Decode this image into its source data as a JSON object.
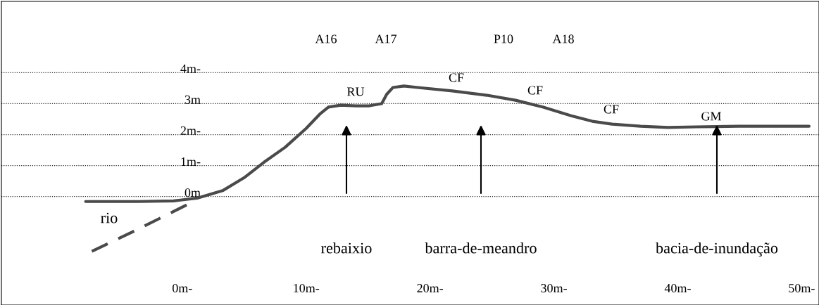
{
  "chart_data": {
    "type": "line",
    "series": [
      {
        "color": "#4a4a4a",
        "line_style": "solid",
        "x": [
          -7.8,
          -3.5,
          -0.7,
          1.2,
          3.3,
          5.0,
          6.6,
          8.3,
          10.0,
          11.1,
          11.8,
          12.8,
          14.0,
          15.1,
          16.1,
          16.5,
          17.0,
          17.9,
          19.0,
          21.8,
          24.6,
          26.9,
          29.1,
          31.4,
          33.1,
          34.7,
          37.0,
          39.2,
          41.5,
          44.9,
          47.7,
          50.6
        ],
        "values": [
          -0.16,
          -0.16,
          -0.14,
          -0.05,
          0.2,
          0.61,
          1.11,
          1.59,
          2.2,
          2.66,
          2.89,
          2.95,
          2.93,
          2.93,
          3.0,
          3.3,
          3.52,
          3.57,
          3.52,
          3.41,
          3.27,
          3.11,
          2.89,
          2.61,
          2.43,
          2.34,
          2.27,
          2.23,
          2.25,
          2.27,
          2.27,
          2.27
        ]
      },
      {
        "color": "#4a4a4a",
        "line_style": "dashed",
        "x": [
          -7.3,
          -3.3,
          -0.7,
          1.0
        ],
        "values": [
          -1.77,
          -1.0,
          -0.48,
          -0.14
        ]
      }
    ],
    "xlim": [
      -14.6,
      51.4
    ],
    "ylim": [
      -3.5,
      6.3
    ],
    "xticks": [
      {
        "value": 0,
        "label": "0m-"
      },
      {
        "value": 10,
        "label": "10m-"
      },
      {
        "value": 20,
        "label": "20m-"
      },
      {
        "value": 30,
        "label": "30m-"
      },
      {
        "value": 40,
        "label": "40m-"
      },
      {
        "value": 50,
        "label": "50m-"
      }
    ],
    "yticks": [
      {
        "value": 0,
        "label": "0m"
      },
      {
        "value": 1,
        "label": "1m-"
      },
      {
        "value": 2,
        "label": "2m-"
      },
      {
        "value": 3,
        "label": "3m"
      },
      {
        "value": 4,
        "label": "4m-"
      }
    ],
    "grid": "y",
    "legend": false,
    "annotations": [
      "A16",
      "A17",
      "P10",
      "A18",
      "RU",
      "CF",
      "CF",
      "CF",
      "GM",
      "rio",
      "rebaixio",
      "barra-de-meandro",
      "bacia-de-inundação"
    ]
  }
}
